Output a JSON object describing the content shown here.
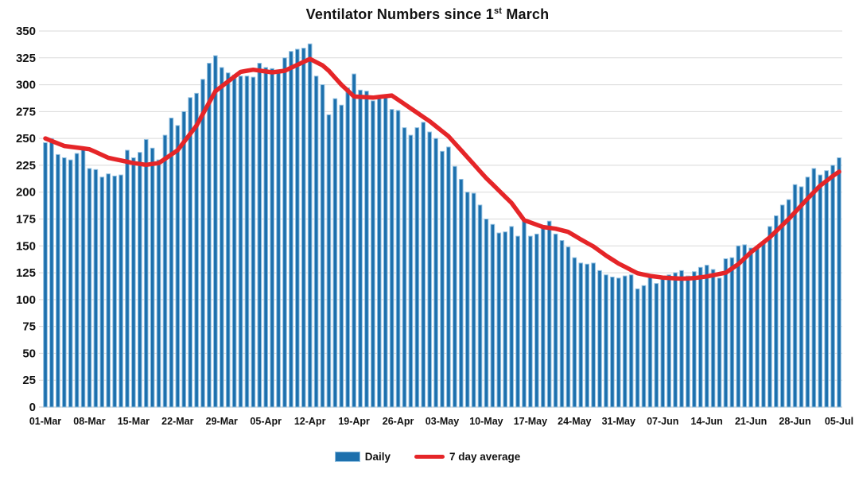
{
  "title": {
    "prefix": "Ventilator Numbers since 1",
    "ordinal": "st",
    "suffix": " March"
  },
  "legend": {
    "daily_label": "Daily",
    "average_label": "7 day average"
  },
  "colors": {
    "bar_fill": "#1d70ad",
    "bar_edge": "#90bfe0",
    "line": "#e52528",
    "grid": "#d9d9d9",
    "axis_text": "#111111",
    "background": "#ffffff"
  },
  "chart_data": {
    "type": "bar",
    "title": "Ventilator Numbers since 1st March",
    "x_range": "01-Mar to 05-Jul (127 daily values)",
    "x_tick_interval_days": 7,
    "x_tick_labels": [
      "01-Mar",
      "08-Mar",
      "15-Mar",
      "22-Mar",
      "29-Mar",
      "05-Apr",
      "12-Apr",
      "19-Apr",
      "26-Apr",
      "03-May",
      "10-May",
      "17-May",
      "24-May",
      "31-May",
      "07-Jun",
      "14-Jun",
      "21-Jun",
      "28-Jun",
      "05-Jul"
    ],
    "ylim": [
      0,
      350
    ],
    "y_tick_step": 25,
    "y_tick_labels": [
      "0",
      "25",
      "50",
      "75",
      "100",
      "125",
      "150",
      "175",
      "200",
      "225",
      "250",
      "275",
      "300",
      "325",
      "350"
    ],
    "grid": "horizontal",
    "legend_position": "bottom",
    "series": [
      {
        "name": "Daily",
        "type": "bar",
        "values": [
          246,
          250,
          235,
          232,
          230,
          236,
          240,
          222,
          221,
          214,
          217,
          215,
          216,
          239,
          232,
          237,
          249,
          241,
          230,
          253,
          269,
          262,
          275,
          288,
          292,
          305,
          320,
          327,
          316,
          311,
          309,
          308,
          308,
          307,
          320,
          316,
          315,
          312,
          325,
          331,
          333,
          334,
          338,
          308,
          300,
          272,
          287,
          281,
          297,
          310,
          295,
          294,
          285,
          288,
          289,
          277,
          276,
          260,
          253,
          260,
          265,
          256,
          250,
          238,
          242,
          224,
          212,
          200,
          199,
          188,
          175,
          170,
          162,
          163,
          168,
          159,
          173,
          159,
          161,
          166,
          173,
          161,
          155,
          149,
          139,
          134,
          133,
          134,
          127,
          123,
          121,
          120,
          122,
          123,
          110,
          113,
          121,
          115,
          121,
          123,
          125,
          127,
          122,
          126,
          130,
          132,
          128,
          120,
          138,
          139,
          150,
          151,
          148,
          148,
          152,
          168,
          178,
          188,
          193,
          207,
          205,
          214,
          222,
          216,
          220,
          225,
          232
        ]
      },
      {
        "name": "7 day average",
        "type": "line",
        "keypoints_day_value": [
          [
            0,
            250
          ],
          [
            3,
            243
          ],
          [
            7,
            240
          ],
          [
            10,
            232
          ],
          [
            14,
            227
          ],
          [
            16,
            225.5
          ],
          [
            18,
            227
          ],
          [
            21,
            239
          ],
          [
            24,
            262
          ],
          [
            27,
            294
          ],
          [
            29,
            303
          ],
          [
            31,
            312
          ],
          [
            33,
            314
          ],
          [
            36,
            311.5
          ],
          [
            38,
            313
          ],
          [
            42,
            324
          ],
          [
            44,
            318
          ],
          [
            45,
            313
          ],
          [
            47,
            300
          ],
          [
            49,
            289
          ],
          [
            52,
            288
          ],
          [
            55,
            290
          ],
          [
            58,
            278
          ],
          [
            61,
            266
          ],
          [
            64,
            252
          ],
          [
            66,
            239
          ],
          [
            70,
            213
          ],
          [
            74,
            190
          ],
          [
            76,
            174
          ],
          [
            79,
            167.5
          ],
          [
            81,
            166
          ],
          [
            83,
            163
          ],
          [
            85,
            156
          ],
          [
            87,
            149.5
          ],
          [
            89,
            141
          ],
          [
            91,
            133.5
          ],
          [
            94,
            124.5
          ],
          [
            96,
            122
          ],
          [
            98,
            120.5
          ],
          [
            101,
            119.5
          ],
          [
            103,
            120
          ],
          [
            105,
            121.5
          ],
          [
            108,
            125
          ],
          [
            110,
            133
          ],
          [
            112,
            144
          ],
          [
            115,
            158
          ],
          [
            118,
            175
          ],
          [
            121,
            194
          ],
          [
            123,
            206
          ],
          [
            125,
            215
          ],
          [
            126,
            219
          ]
        ]
      }
    ]
  }
}
